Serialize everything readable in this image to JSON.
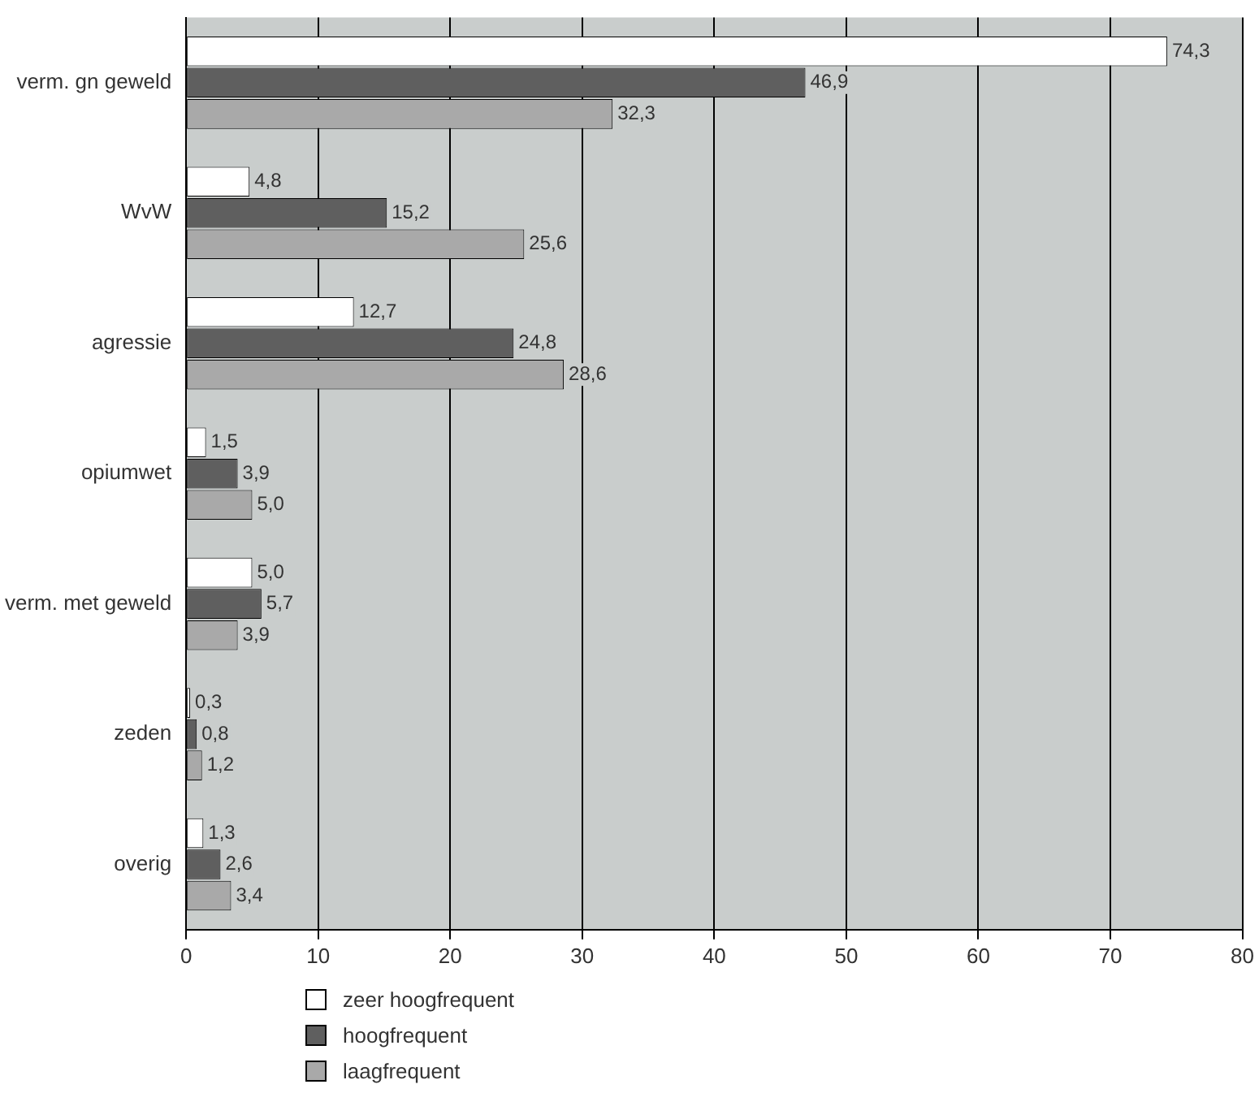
{
  "chart_data": {
    "type": "bar",
    "orientation": "horizontal",
    "categories": [
      "verm. gn geweld",
      "WvW",
      "agressie",
      "opiumwet",
      "verm. met geweld",
      "zeden",
      "overig"
    ],
    "series": [
      {
        "name": "zeer hoogfrequent",
        "color": "#ffffff",
        "values": [
          74.3,
          4.8,
          12.7,
          1.5,
          5.0,
          0.3,
          1.3
        ],
        "value_labels": [
          "74,3",
          "4,8",
          "12,7",
          "1,5",
          "5,0",
          "0,3",
          "1,3"
        ]
      },
      {
        "name": "hoogfrequent",
        "color": "#5f5f5f",
        "values": [
          46.9,
          15.2,
          24.8,
          3.9,
          5.7,
          0.8,
          2.6
        ],
        "value_labels": [
          "46,9",
          "15,2",
          "24,8",
          "3,9",
          "5,7",
          "0,8",
          "2,6"
        ]
      },
      {
        "name": "laagfrequent",
        "color": "#a9a9a9",
        "values": [
          32.3,
          25.6,
          28.6,
          5.0,
          3.9,
          1.2,
          3.4
        ],
        "value_labels": [
          "32,3",
          "25,6",
          "28,6",
          "5,0",
          "3,9",
          "1,2",
          "3,4"
        ]
      }
    ],
    "xlim": [
      0,
      80
    ],
    "xticks": [
      0,
      10,
      20,
      30,
      40,
      50,
      60,
      70,
      80
    ],
    "grid": "x",
    "legend": "bottom left"
  }
}
